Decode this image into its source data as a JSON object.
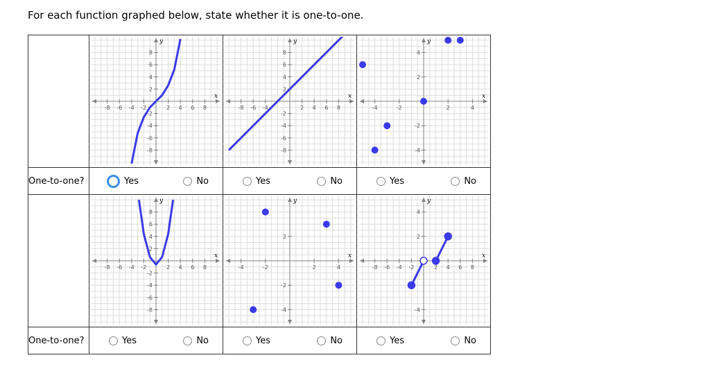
{
  "prompt": "For each function graphed below, state whether it is one-to-one.",
  "row_label": "One-to-one?",
  "options": {
    "yes": "Yes",
    "no": "No"
  },
  "colors": {
    "curve": "#3a3ae8",
    "grid": "#dcdcdc",
    "axis": "#808080"
  },
  "graphs": [
    {
      "name": "graph-1",
      "type": "curve",
      "x_ticks": [
        "-8",
        "-6",
        "-4",
        "-2",
        "2",
        "4",
        "6",
        "8"
      ],
      "y_ticks": [
        "8",
        "6",
        "4",
        "2",
        "-2",
        "-4",
        "-6",
        "-8"
      ],
      "axis_x": "x",
      "axis_y": "y",
      "points": [
        [
          -4,
          -10.2
        ],
        [
          -3,
          -5.2
        ],
        [
          -2,
          -2.6
        ],
        [
          -1,
          -1
        ],
        [
          0,
          0
        ],
        [
          1,
          1
        ],
        [
          2,
          2.6
        ],
        [
          3,
          5.2
        ],
        [
          4,
          10.2
        ]
      ]
    },
    {
      "name": "graph-2",
      "type": "curve",
      "x_ticks": [
        "-8",
        "-6",
        "-4",
        "2",
        "4",
        "6",
        "8"
      ],
      "y_ticks": [
        "8",
        "6",
        "4",
        "2",
        "-2",
        "-4",
        "-6",
        "-8"
      ],
      "axis_x": "x",
      "axis_y": "y",
      "points": [
        [
          -10,
          -8
        ],
        [
          10,
          12
        ]
      ]
    },
    {
      "name": "graph-3",
      "type": "points",
      "x_ticks": [
        "-4",
        "-2",
        "2",
        "4"
      ],
      "y_ticks": [
        "4",
        "2",
        "-2",
        "-4"
      ],
      "axis_x": "x",
      "axis_y": "y",
      "points": [
        [
          -5,
          3
        ],
        [
          -4,
          -4
        ],
        [
          -3,
          -2
        ],
        [
          0,
          0
        ],
        [
          2,
          5
        ],
        [
          3,
          5
        ]
      ]
    },
    {
      "name": "graph-4",
      "type": "curve",
      "x_ticks": [
        "-8",
        "-6",
        "-4",
        "-2",
        "2",
        "4",
        "6",
        "8"
      ],
      "y_ticks": [
        "8",
        "6",
        "4",
        "2",
        "-2",
        "-4",
        "-6",
        "-8"
      ],
      "axis_x": "x",
      "axis_y": "y",
      "points": [
        [
          -2.8,
          10
        ],
        [
          -2,
          4.4
        ],
        [
          -1,
          0.6
        ],
        [
          0,
          -0.6
        ],
        [
          1,
          0.6
        ],
        [
          2,
          4.4
        ],
        [
          2.8,
          10
        ]
      ]
    },
    {
      "name": "graph-5",
      "type": "points",
      "x_ticks": [
        "-4",
        "-2",
        "2",
        "4"
      ],
      "y_ticks": [
        "2",
        "-2",
        "-4"
      ],
      "axis_x": "x",
      "axis_y": "y",
      "points": [
        [
          -2,
          4
        ],
        [
          3,
          3
        ],
        [
          4,
          -2
        ],
        [
          -3,
          -4
        ]
      ]
    },
    {
      "name": "graph-6",
      "type": "piecewise",
      "x_ticks": [
        "-8",
        "-6",
        "-4",
        "-2",
        "2",
        "4",
        "6",
        "8"
      ],
      "y_ticks": [
        "4",
        "2",
        "-4"
      ],
      "axis_x": "x",
      "axis_y": "y",
      "segments": [
        {
          "from": [
            -2,
            -2
          ],
          "to": [
            0,
            0
          ],
          "start": "closed",
          "end": "open"
        },
        {
          "from": [
            2,
            0
          ],
          "to": [
            4,
            2
          ],
          "start": "closed",
          "end": "closed"
        }
      ]
    }
  ],
  "rows": [
    {
      "selected": "yes"
    },
    {
      "selected": "none"
    }
  ]
}
